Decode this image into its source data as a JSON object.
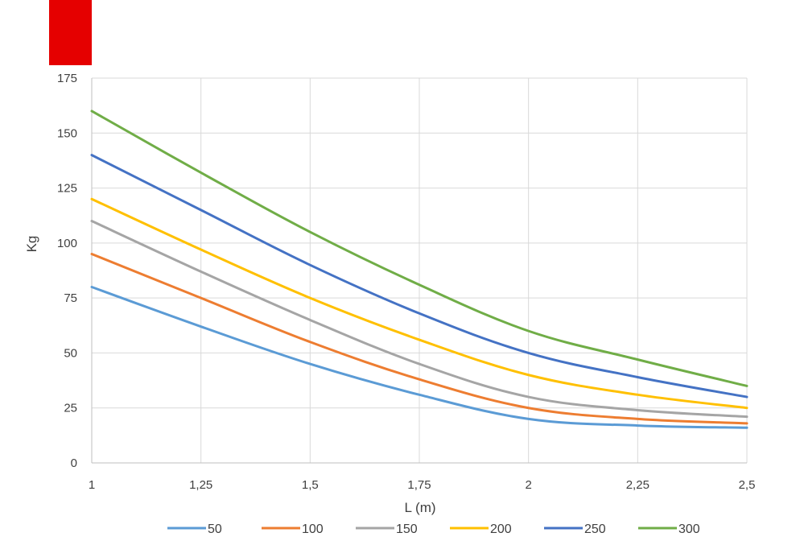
{
  "colors": {
    "brand_block": "#e50000",
    "grid": "#d9d9d9",
    "axis": "#bfbfbf",
    "text": "#404040"
  },
  "chart_data": {
    "type": "line",
    "xlabel": "L (m)",
    "ylabel": "Kg",
    "xlim": [
      1,
      2.5
    ],
    "ylim": [
      0,
      175
    ],
    "x_ticks": [
      "1",
      "1,25",
      "1,5",
      "1,75",
      "2",
      "2,25",
      "2,5"
    ],
    "y_ticks": [
      "0",
      "25",
      "50",
      "75",
      "100",
      "125",
      "150",
      "175"
    ],
    "grid": true,
    "legend_position": "bottom",
    "x": [
      1,
      1.25,
      1.5,
      1.75,
      2,
      2.25,
      2.5
    ],
    "series": [
      {
        "name": "50",
        "color": "#5b9bd5",
        "values": [
          80,
          62,
          45,
          31,
          20,
          17,
          16
        ]
      },
      {
        "name": "100",
        "color": "#ed7d31",
        "values": [
          95,
          75,
          55,
          38,
          25,
          20,
          18
        ]
      },
      {
        "name": "150",
        "color": "#a5a5a5",
        "values": [
          110,
          87,
          65,
          45,
          30,
          24,
          21
        ]
      },
      {
        "name": "200",
        "color": "#ffc000",
        "values": [
          120,
          97,
          75,
          56,
          40,
          31,
          25
        ]
      },
      {
        "name": "250",
        "color": "#4472c4",
        "values": [
          140,
          115,
          90,
          68,
          50,
          39,
          30
        ]
      },
      {
        "name": "300",
        "color": "#70ad47",
        "values": [
          160,
          132,
          105,
          81,
          60,
          47,
          35
        ]
      }
    ]
  }
}
